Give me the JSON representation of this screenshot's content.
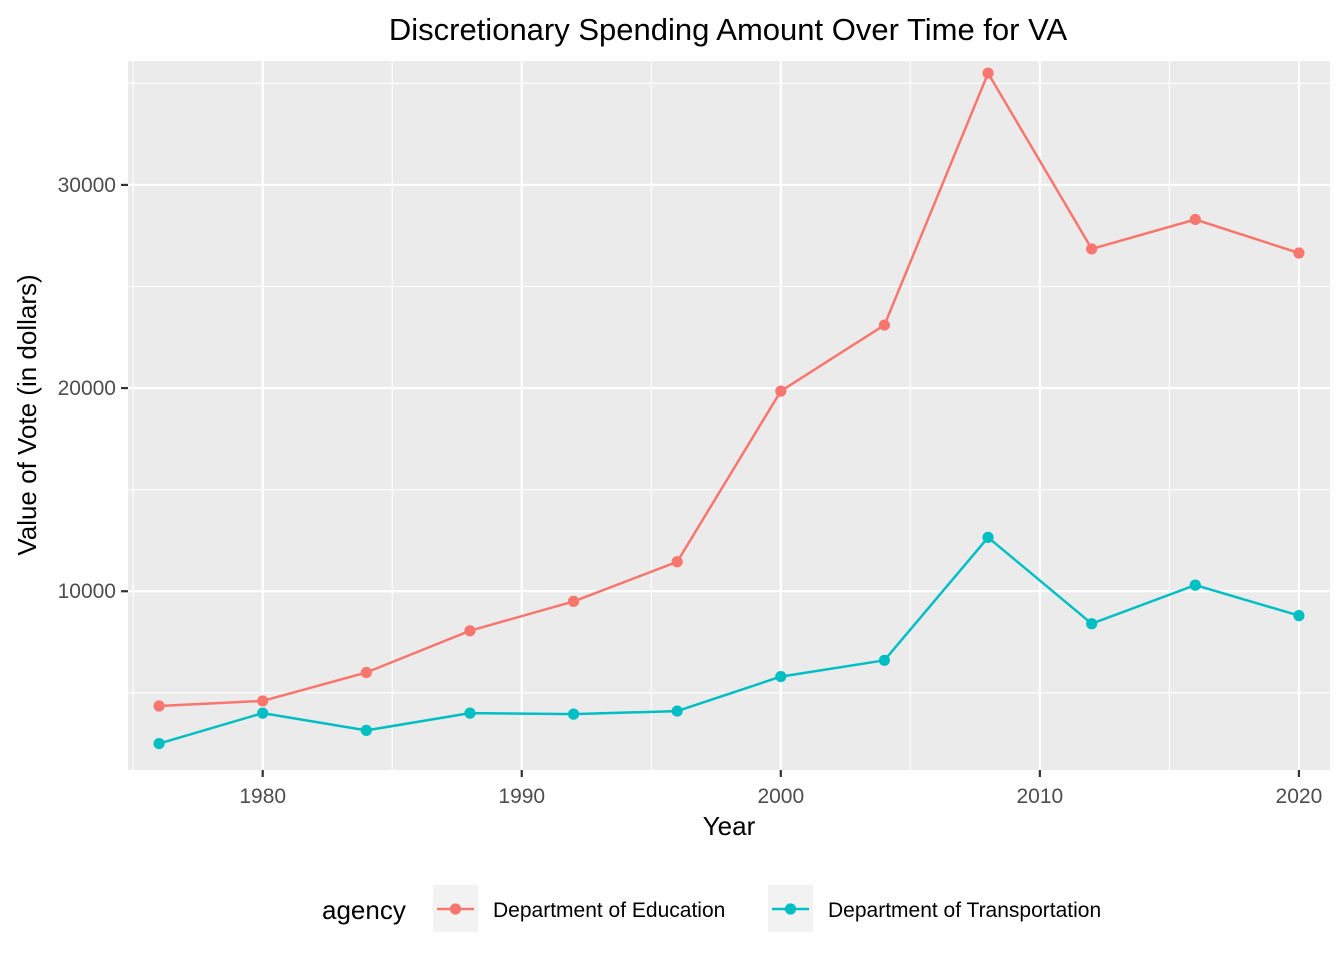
{
  "chart_data": {
    "type": "line",
    "title": "Discretionary Spending Amount Over Time for VA",
    "xlabel": "Year",
    "ylabel": "Value of Vote (in dollars)",
    "xlim": [
      1974.8,
      2021.2
    ],
    "ylim": [
      1200,
      36100
    ],
    "x_ticks": [
      1980,
      1990,
      2000,
      2010,
      2020
    ],
    "x_minor_ticks": [
      1975,
      1985,
      1995,
      2005,
      2015
    ],
    "y_ticks": [
      10000,
      20000,
      30000
    ],
    "y_minor_ticks": [
      5000,
      15000,
      25000,
      35000
    ],
    "x_tick_labels": [
      "1980",
      "1990",
      "2000",
      "2010",
      "2020"
    ],
    "y_tick_labels": [
      "10000",
      "20000",
      "30000"
    ],
    "grid": true,
    "legend": {
      "title": "agency",
      "position": "bottom"
    },
    "x": [
      1976,
      1980,
      1984,
      1988,
      1992,
      1996,
      2000,
      2004,
      2008,
      2012,
      2016,
      2020
    ],
    "series": [
      {
        "name": "Department of Education",
        "color": "#F8766D",
        "values": [
          4350,
          4600,
          6000,
          8050,
          9500,
          11450,
          19850,
          23100,
          35500,
          26850,
          28300,
          26650
        ]
      },
      {
        "name": "Department of Transportation",
        "color": "#00BFC4",
        "values": [
          2500,
          4000,
          3150,
          4000,
          3950,
          4100,
          5800,
          6600,
          12650,
          8400,
          10300,
          8800
        ]
      }
    ]
  }
}
